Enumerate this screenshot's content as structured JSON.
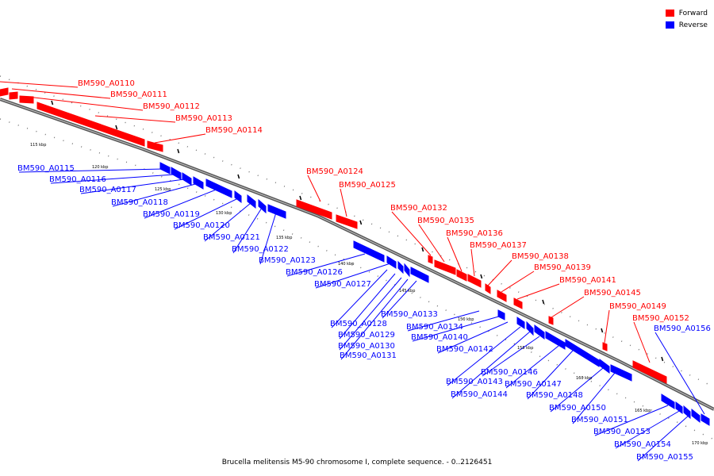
{
  "caption": "Brucella melitensis M5-90 chromosome I, complete sequence. - 0..2126451",
  "legend": [
    {
      "label": "Forward",
      "color": "#ff0000"
    },
    {
      "label": "Reverse",
      "color": "#0000ff"
    }
  ],
  "colors": {
    "forward": "#ff0000",
    "reverse": "#0000ff",
    "backbone": "#555555"
  },
  "ticks": [
    "115 kbp",
    "120 kbp",
    "125 kbp",
    "130 kbp",
    "135 kbp",
    "140 kbp",
    "145 kbp",
    "150 kbp",
    "155 kbp",
    "160 kbp",
    "165 kbp",
    "170 kbp"
  ],
  "forward_genes": [
    "BM590_A0110",
    "BM590_A0111",
    "BM590_A0112",
    "BM590_A0113",
    "BM590_A0114",
    "BM590_A0124",
    "BM590_A0125",
    "BM590_A0132",
    "BM590_A0135",
    "BM590_A0136",
    "BM590_A0137",
    "BM590_A0138",
    "BM590_A0139",
    "BM590_A0141",
    "BM590_A0145",
    "BM590_A0149",
    "BM590_A0152"
  ],
  "reverse_genes": [
    "BM590_A0115",
    "BM590_A0116",
    "BM590_A0117",
    "BM590_A0118",
    "BM590_A0119",
    "BM590_A0120",
    "BM590_A0121",
    "BM590_A0122",
    "BM590_A0123",
    "BM590_A0126",
    "BM590_A0127",
    "BM590_A0128",
    "BM590_A0129",
    "BM590_A0130",
    "BM590_A0131",
    "BM590_A0133",
    "BM590_A0134",
    "BM590_A0140",
    "BM590_A0142",
    "BM590_A0143",
    "BM590_A0144",
    "BM590_A0146",
    "BM590_A0147",
    "BM590_A0148",
    "BM590_A0150",
    "BM590_A0151",
    "BM590_A0153",
    "BM590_A0154",
    "BM590_A0155",
    "BM590_A0156"
  ]
}
